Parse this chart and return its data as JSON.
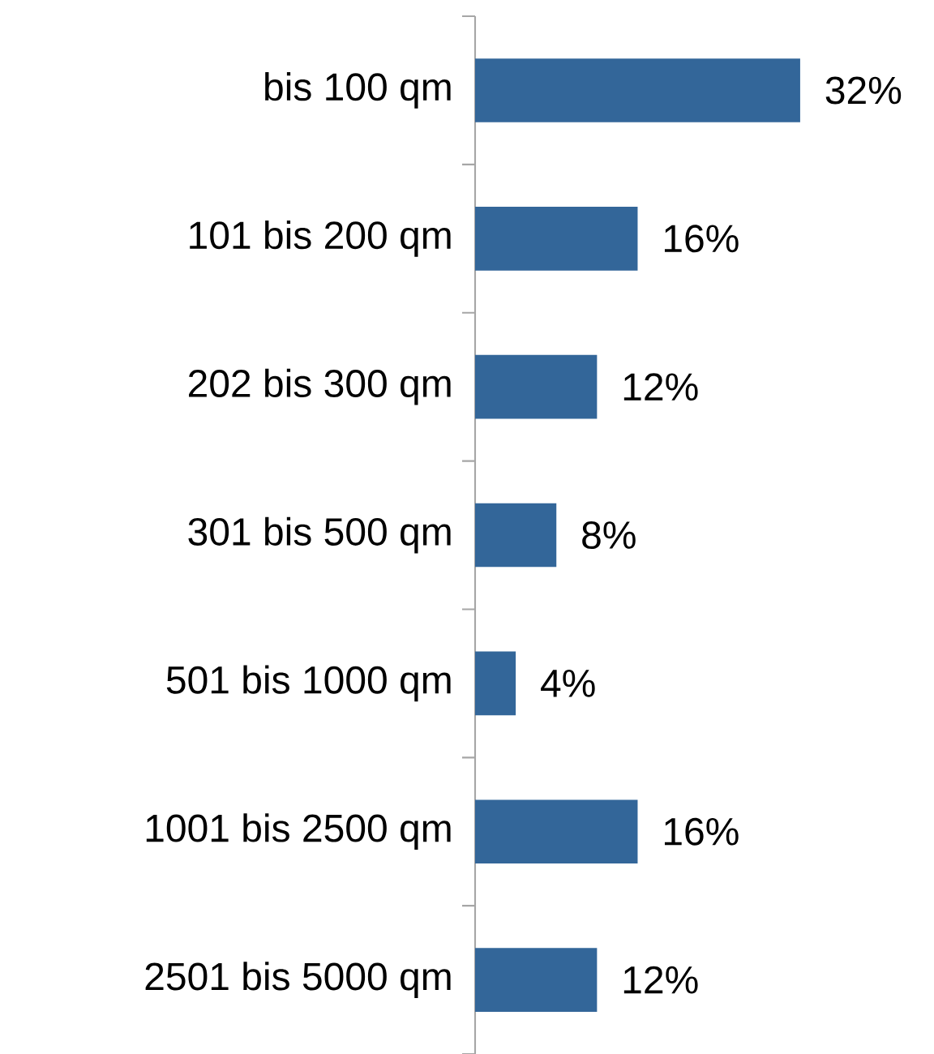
{
  "chart_data": {
    "type": "bar",
    "orientation": "horizontal",
    "categories": [
      "bis 100 qm",
      "101 bis 200 qm",
      "202 bis 300 qm",
      "301 bis 500 qm",
      "501 bis 1000 qm",
      "1001 bis 2500 qm",
      "2501 bis 5000 qm"
    ],
    "values": [
      32,
      16,
      12,
      8,
      4,
      16,
      12
    ],
    "value_labels": [
      "32%",
      "16%",
      "12%",
      "8%",
      "4%",
      "16%",
      "12%"
    ],
    "color": "#336699"
  }
}
